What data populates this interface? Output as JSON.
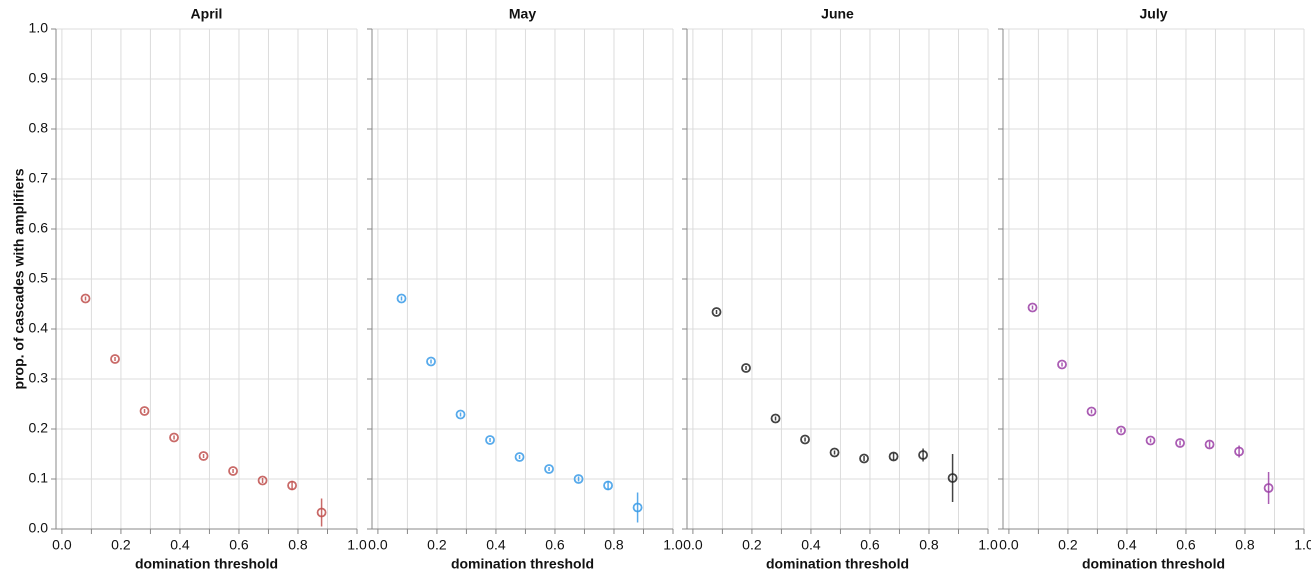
{
  "chart_data": {
    "type": "scatter",
    "ylabel": "prop. of cascades with amplifiers",
    "ylim": [
      0,
      1
    ],
    "yticks": [
      "0.0",
      "0.1",
      "0.2",
      "0.3",
      "0.4",
      "0.5",
      "0.6",
      "0.7",
      "0.8",
      "0.9",
      "1.0"
    ],
    "grid": true,
    "error_bars": true,
    "panels": [
      {
        "title": "April",
        "xlabel": "domination threshold",
        "xlim": [
          -0.02,
          1.0
        ],
        "xticks": [
          "0.0",
          "0.2",
          "0.4",
          "0.6",
          "0.8",
          "1.0"
        ],
        "color": "#c0504d",
        "points": [
          {
            "x": 0.08,
            "y": 0.461,
            "err": 0.004
          },
          {
            "x": 0.18,
            "y": 0.34,
            "err": 0.004
          },
          {
            "x": 0.28,
            "y": 0.236,
            "err": 0.004
          },
          {
            "x": 0.38,
            "y": 0.183,
            "err": 0.004
          },
          {
            "x": 0.48,
            "y": 0.146,
            "err": 0.004
          },
          {
            "x": 0.58,
            "y": 0.116,
            "err": 0.004
          },
          {
            "x": 0.68,
            "y": 0.097,
            "err": 0.005
          },
          {
            "x": 0.78,
            "y": 0.087,
            "err": 0.009
          },
          {
            "x": 0.88,
            "y": 0.033,
            "err": 0.028
          }
        ]
      },
      {
        "title": "May",
        "xlabel": "domination threshold",
        "xlim": [
          -0.02,
          1.0
        ],
        "xticks": [
          "0.0",
          "0.2",
          "0.4",
          "0.6",
          "0.8",
          "1.0"
        ],
        "color": "#3a9be8",
        "points": [
          {
            "x": 0.08,
            "y": 0.461,
            "err": 0.004
          },
          {
            "x": 0.18,
            "y": 0.335,
            "err": 0.004
          },
          {
            "x": 0.28,
            "y": 0.229,
            "err": 0.004
          },
          {
            "x": 0.38,
            "y": 0.178,
            "err": 0.004
          },
          {
            "x": 0.48,
            "y": 0.144,
            "err": 0.004
          },
          {
            "x": 0.58,
            "y": 0.12,
            "err": 0.004
          },
          {
            "x": 0.68,
            "y": 0.1,
            "err": 0.005
          },
          {
            "x": 0.78,
            "y": 0.087,
            "err": 0.009
          },
          {
            "x": 0.88,
            "y": 0.043,
            "err": 0.03
          }
        ]
      },
      {
        "title": "June",
        "xlabel": "domination threshold",
        "xlim": [
          -0.02,
          1.0
        ],
        "xticks": [
          "0.0",
          "0.2",
          "0.4",
          "0.6",
          "0.8",
          "1.0"
        ],
        "color": "#222222",
        "points": [
          {
            "x": 0.08,
            "y": 0.434,
            "err": 0.004
          },
          {
            "x": 0.18,
            "y": 0.322,
            "err": 0.004
          },
          {
            "x": 0.28,
            "y": 0.221,
            "err": 0.004
          },
          {
            "x": 0.38,
            "y": 0.179,
            "err": 0.004
          },
          {
            "x": 0.48,
            "y": 0.153,
            "err": 0.004
          },
          {
            "x": 0.58,
            "y": 0.141,
            "err": 0.005
          },
          {
            "x": 0.68,
            "y": 0.145,
            "err": 0.007
          },
          {
            "x": 0.78,
            "y": 0.148,
            "err": 0.013
          },
          {
            "x": 0.88,
            "y": 0.102,
            "err": 0.048
          }
        ]
      },
      {
        "title": "July",
        "xlabel": "domination threshold",
        "xlim": [
          -0.02,
          1.0
        ],
        "xticks": [
          "0.0",
          "0.2",
          "0.4",
          "0.6",
          "0.8",
          "1.0"
        ],
        "color": "#9b3fa6",
        "points": [
          {
            "x": 0.08,
            "y": 0.443,
            "err": 0.004
          },
          {
            "x": 0.18,
            "y": 0.329,
            "err": 0.004
          },
          {
            "x": 0.28,
            "y": 0.235,
            "err": 0.004
          },
          {
            "x": 0.38,
            "y": 0.197,
            "err": 0.004
          },
          {
            "x": 0.48,
            "y": 0.177,
            "err": 0.004
          },
          {
            "x": 0.58,
            "y": 0.172,
            "err": 0.005
          },
          {
            "x": 0.68,
            "y": 0.169,
            "err": 0.006
          },
          {
            "x": 0.78,
            "y": 0.155,
            "err": 0.012
          },
          {
            "x": 0.88,
            "y": 0.082,
            "err": 0.032
          }
        ]
      }
    ]
  }
}
